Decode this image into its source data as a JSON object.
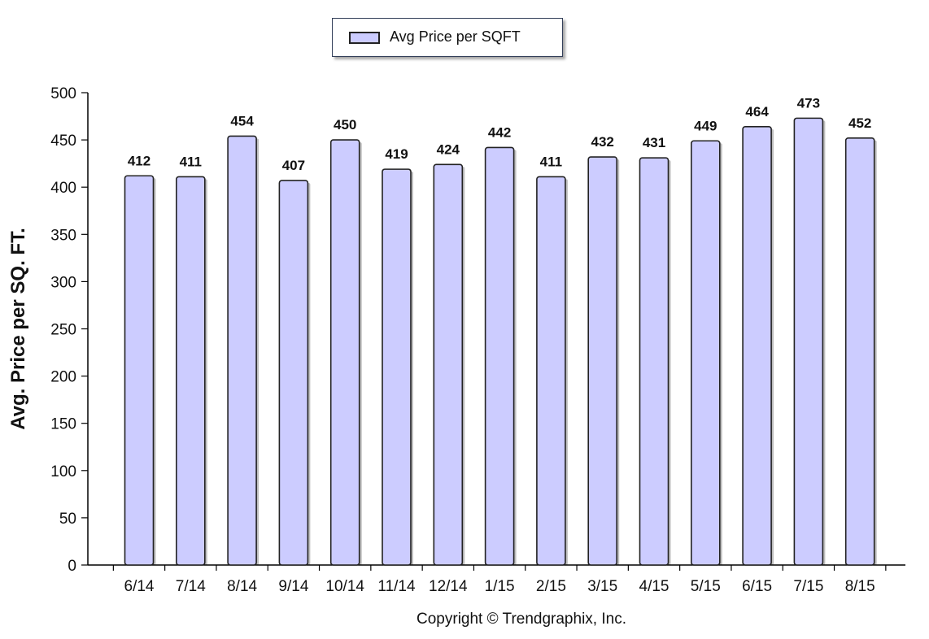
{
  "legend": {
    "label": "Avg Price per SQFT",
    "swatch_color": "#ccccff"
  },
  "copyright": "Copyright © Trendgraphix, Inc.",
  "chart_data": {
    "type": "bar",
    "categories": [
      "6/14",
      "7/14",
      "8/14",
      "9/14",
      "10/14",
      "11/14",
      "12/14",
      "1/15",
      "2/15",
      "3/15",
      "4/15",
      "5/15",
      "6/15",
      "7/15",
      "8/15"
    ],
    "series": [
      {
        "name": "Avg Price per SQFT",
        "values": [
          412,
          411,
          454,
          407,
          450,
          419,
          424,
          442,
          411,
          432,
          431,
          449,
          464,
          473,
          452
        ]
      }
    ],
    "ylabel": "Avg. Price per SQ. FT.",
    "xlabel": "",
    "ylim": [
      0,
      500
    ],
    "yticks": [
      0,
      50,
      100,
      150,
      200,
      250,
      300,
      350,
      400,
      450,
      500
    ],
    "grid": false,
    "legend_position": "top-center",
    "colors": {
      "bar_fill": "#ccccff",
      "bar_stroke": "#222222",
      "axis": "#000000"
    }
  }
}
